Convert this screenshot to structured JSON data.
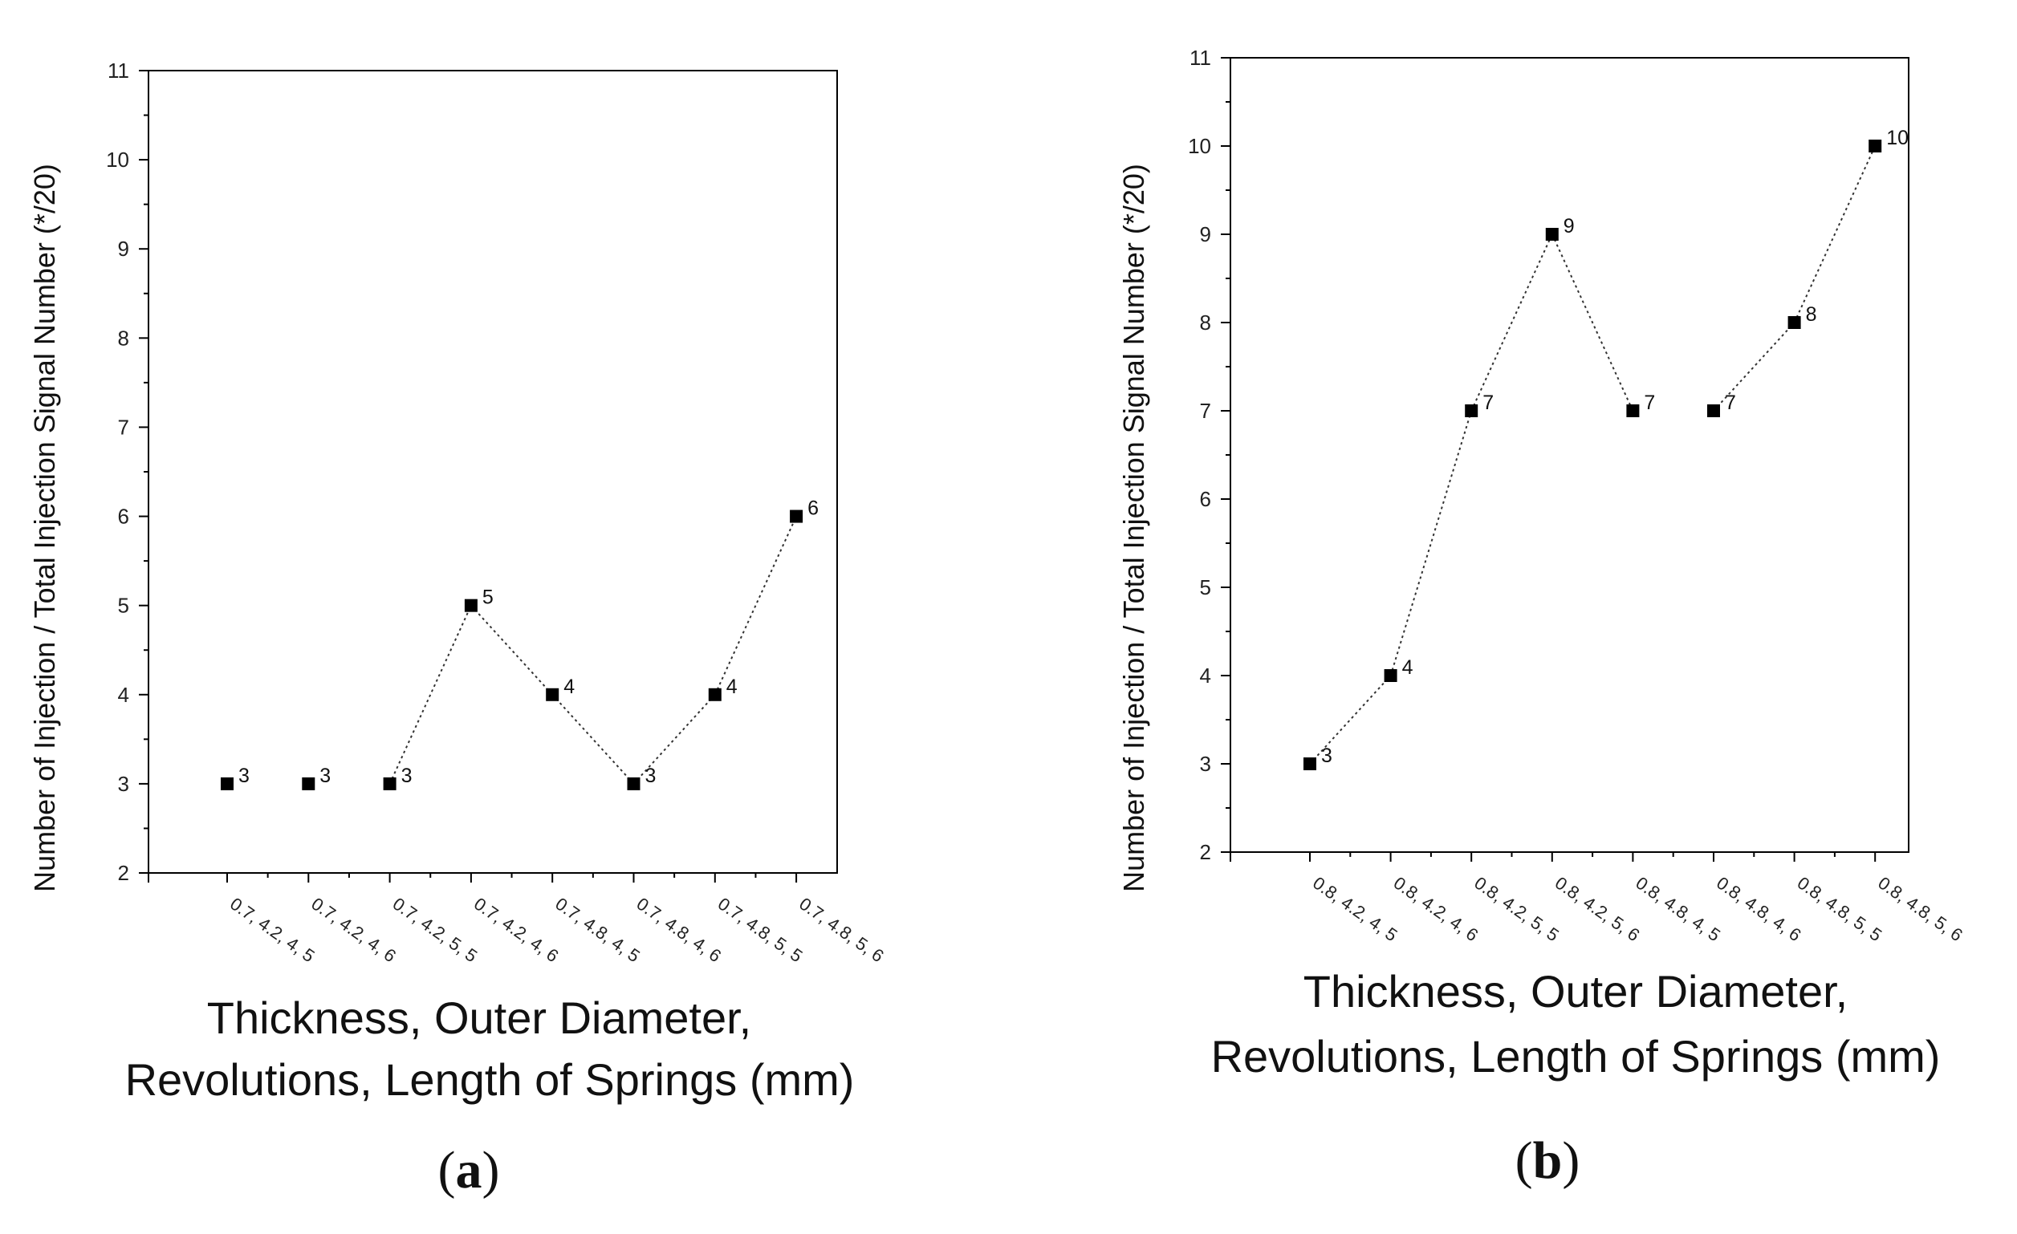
{
  "chart_data": [
    {
      "type": "line",
      "panel_label": "a",
      "title": "",
      "categories": [
        "0.7, 4.2, 4, 5",
        "0.7, 4.2, 4, 6",
        "0.7, 4.2, 5, 5",
        "0.7, 4.2, 4, 6",
        "0.7, 4.8, 4, 5",
        "0.7, 4.8, 4, 6",
        "0.7, 4.8, 5, 5",
        "0.7, 4.8, 5, 6"
      ],
      "values": [
        3,
        3,
        3,
        5,
        4,
        3,
        4,
        6
      ],
      "data_labels": [
        "3",
        "3",
        "3",
        "5",
        "4",
        "3",
        "4",
        "6"
      ],
      "line_segments": [
        [
          2,
          3
        ],
        [
          3,
          4
        ],
        [
          4,
          5
        ],
        [
          5,
          6
        ],
        [
          6,
          7
        ]
      ],
      "ylim": [
        2,
        11
      ],
      "yticks": [
        "2",
        "3",
        "4",
        "5",
        "6",
        "7",
        "8",
        "9",
        "10",
        "11"
      ],
      "ylabel": "Number of Injection / Total Injection Signal Number (*/20)",
      "xlabel_lines": [
        "Thickness, Outer Diameter,",
        "Revolutions, Length of Springs (mm)"
      ],
      "color": "#000000"
    },
    {
      "type": "line",
      "panel_label": "b",
      "title": "",
      "categories": [
        "0.8, 4.2, 4, 5",
        "0.8, 4.2, 4, 6",
        "0.8, 4.2, 5, 5",
        "0.8, 4.2, 5, 6",
        "0.8, 4.8, 4, 5",
        "0.8, 4.8, 4, 6",
        "0.8, 4.8, 5, 5",
        "0.8, 4.8, 5, 6"
      ],
      "values": [
        3,
        4,
        7,
        9,
        7,
        7,
        8,
        10
      ],
      "data_labels": [
        "3",
        "4",
        "7",
        "9",
        "7",
        "7",
        "8",
        "10"
      ],
      "line_segments": [
        [
          0,
          1
        ],
        [
          1,
          2
        ],
        [
          2,
          3
        ],
        [
          3,
          4
        ],
        [
          5,
          6
        ],
        [
          6,
          7
        ]
      ],
      "ylim": [
        2,
        11
      ],
      "yticks": [
        "2",
        "3",
        "4",
        "5",
        "6",
        "7",
        "8",
        "9",
        "10",
        "11"
      ],
      "ylabel": "Number of Injection / Total Injection Signal Number (*/20)",
      "xlabel_lines": [
        "Thickness, Outer Diameter,",
        "Revolutions, Length of Springs (mm)"
      ],
      "color": "#000000"
    }
  ]
}
